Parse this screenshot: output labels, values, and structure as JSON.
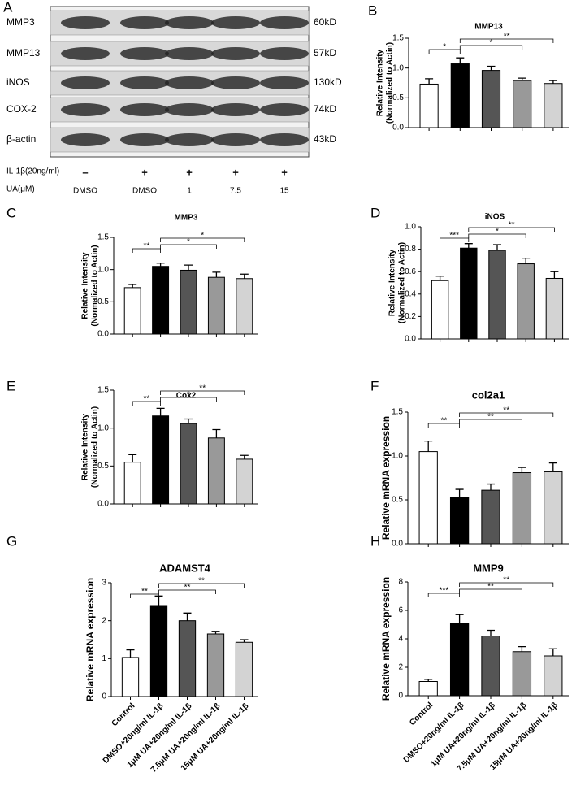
{
  "blot": {
    "panel": "A",
    "proteins": [
      "MMP3",
      "MMP13",
      "iNOS",
      "COX-2",
      "β-actin"
    ],
    "sizes": [
      "60kD",
      "57kD",
      "130kD",
      "74kD",
      "43kD"
    ],
    "treatments": [
      {
        "label": "IL-1β(20ng/ml)",
        "values": [
          "–",
          "+",
          "+",
          "+",
          "+"
        ]
      },
      {
        "label": "UA(μM)",
        "values": [
          "DMSO",
          "DMSO",
          "1",
          "7.5",
          "15"
        ]
      }
    ]
  },
  "chart_data": [
    {
      "type": "bar",
      "panel": "B",
      "title": "MMP13",
      "ylabel": [
        "Relative Intensity",
        "(Normalized to Actin)"
      ],
      "categories": [
        null,
        null,
        null,
        null,
        null
      ],
      "values": [
        0.73,
        1.07,
        0.96,
        0.79,
        0.74
      ],
      "errors": [
        0.09,
        0.1,
        0.07,
        0.04,
        0.05
      ],
      "colors": [
        "#ffffff",
        "#000000",
        "#555555",
        "#999999",
        "#d3d3d3"
      ],
      "ylim": [
        0,
        1.5
      ],
      "yticks": [
        {
          "value": 0,
          "label": "0.0"
        },
        0.5,
        {
          "value": 1,
          "label": "1.0"
        },
        1.5
      ],
      "annotations": [
        "*",
        "*",
        "**"
      ]
    },
    {
      "type": "bar",
      "panel": "C",
      "title": "MMP3",
      "ylabel": [
        "Relative Intensity",
        "(Normalized to Actin)"
      ],
      "categories": [
        null,
        null,
        null,
        null,
        null
      ],
      "values": [
        0.72,
        1.05,
        0.99,
        0.88,
        0.86
      ],
      "errors": [
        0.05,
        0.05,
        0.08,
        0.08,
        0.07
      ],
      "colors": [
        "#ffffff",
        "#000000",
        "#555555",
        "#999999",
        "#d3d3d3"
      ],
      "ylim": [
        0,
        1.5
      ],
      "yticks": [
        {
          "value": 0,
          "label": "0.0"
        },
        0.5,
        {
          "value": 1,
          "label": "1.0"
        },
        1.5
      ],
      "annotations": [
        "**",
        "*",
        "*"
      ]
    },
    {
      "type": "bar",
      "panel": "D",
      "title": "iNOS",
      "ylabel": [
        "Relative Intensity",
        "(Normalized to Actin)"
      ],
      "categories": [
        null,
        null,
        null,
        null,
        null
      ],
      "values": [
        0.52,
        0.81,
        0.79,
        0.67,
        0.54
      ],
      "errors": [
        0.04,
        0.04,
        0.05,
        0.05,
        0.06
      ],
      "colors": [
        "#ffffff",
        "#000000",
        "#555555",
        "#999999",
        "#d3d3d3"
      ],
      "ylim": [
        0,
        1
      ],
      "yticks": [
        {
          "value": 0,
          "label": "0.0"
        },
        0.2,
        0.4,
        0.6,
        0.8,
        {
          "value": 1,
          "label": "1.0"
        }
      ],
      "annotations": [
        "***",
        "*",
        "**"
      ]
    },
    {
      "type": "bar",
      "panel": "E",
      "title": "Cox2",
      "ylabel": [
        "Relative Intensity",
        "(Normalized to Actin)"
      ],
      "categories": [
        null,
        null,
        null,
        null,
        null
      ],
      "values": [
        0.55,
        1.16,
        1.06,
        0.87,
        0.59
      ],
      "errors": [
        0.1,
        0.1,
        0.06,
        0.11,
        0.05
      ],
      "colors": [
        "#ffffff",
        "#000000",
        "#555555",
        "#999999",
        "#d3d3d3"
      ],
      "ylim": [
        0,
        1.5
      ],
      "yticks": [
        {
          "value": 0,
          "label": "0.0"
        },
        0.5,
        {
          "value": 1,
          "label": "1.0"
        },
        1.5
      ],
      "annotations": [
        "**",
        "*",
        "**"
      ]
    },
    {
      "type": "bar",
      "panel": "F",
      "title": "col2a1",
      "ylabel": [
        "Relative mRNA expression"
      ],
      "categories": [
        null,
        null,
        null,
        null,
        null
      ],
      "values": [
        1.05,
        0.53,
        0.61,
        0.81,
        0.82
      ],
      "errors": [
        0.12,
        0.09,
        0.07,
        0.06,
        0.1
      ],
      "colors": [
        "#ffffff",
        "#000000",
        "#555555",
        "#999999",
        "#d3d3d3"
      ],
      "ylim": [
        0,
        1.5
      ],
      "yticks": [
        {
          "value": 0,
          "label": "0.0"
        },
        0.5,
        {
          "value": 1,
          "label": "1.0"
        },
        1.5
      ],
      "annotations": [
        "**",
        "**",
        "**"
      ]
    },
    {
      "type": "bar",
      "panel": "G",
      "title": "ADAMST4",
      "ylabel": [
        "Relative mRNA expression"
      ],
      "categories": [
        "Control",
        "DMSO+20ng/ml IL-1β",
        "1μM UA+20ng/ml IL-1β",
        "7.5μM UA+20ng/ml IL-1β",
        "15μM UA+20ng/ml IL-1β"
      ],
      "values": [
        1.03,
        2.4,
        2.0,
        1.65,
        1.43
      ],
      "errors": [
        0.2,
        0.25,
        0.2,
        0.07,
        0.07
      ],
      "colors": [
        "#ffffff",
        "#000000",
        "#555555",
        "#999999",
        "#d3d3d3"
      ],
      "ylim": [
        0,
        3
      ],
      "yticks": [
        0,
        1,
        2,
        3
      ],
      "annotations": [
        "**",
        "**",
        "**"
      ]
    },
    {
      "type": "bar",
      "panel": "H",
      "title": "MMP9",
      "ylabel": [
        "Relative mRNA expression"
      ],
      "categories": [
        "Control",
        "DMSO+20ng/ml IL-1β",
        "1μM UA+20ng/ml IL-1β",
        "7.5μM UA+20ng/ml IL-1β",
        "15μM UA+20ng/ml IL-1β"
      ],
      "values": [
        1.0,
        5.1,
        4.2,
        3.1,
        2.8
      ],
      "errors": [
        0.15,
        0.6,
        0.4,
        0.35,
        0.5
      ],
      "colors": [
        "#ffffff",
        "#000000",
        "#555555",
        "#999999",
        "#d3d3d3"
      ],
      "ylim": [
        0,
        8
      ],
      "yticks": [
        0,
        2,
        4,
        6,
        8
      ],
      "annotations": [
        "***",
        "**",
        "**"
      ]
    }
  ]
}
